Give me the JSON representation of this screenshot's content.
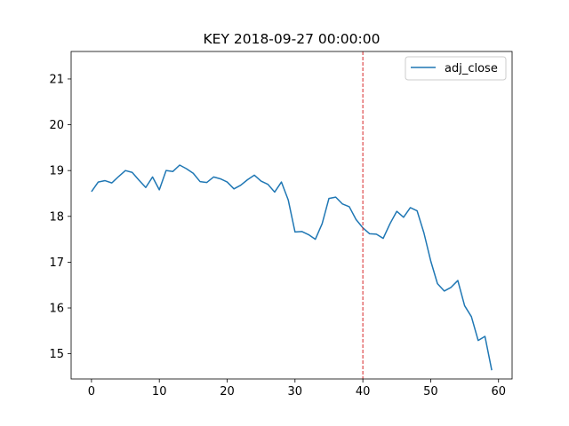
{
  "chart_data": {
    "type": "line",
    "title": "KEY 2018-09-27 00:00:00",
    "xlabel": "",
    "ylabel": "",
    "xlim": [
      -3,
      62
    ],
    "ylim": [
      14.45,
      21.6
    ],
    "xticks": [
      0,
      10,
      20,
      30,
      40,
      50,
      60
    ],
    "yticks": [
      15,
      16,
      17,
      18,
      19,
      20,
      21
    ],
    "grid": false,
    "legend": {
      "position": "top-right"
    },
    "series": [
      {
        "name": "adj_close",
        "color": "#1f77b4",
        "x": [
          0,
          1,
          2,
          3,
          4,
          5,
          6,
          7,
          8,
          9,
          10,
          11,
          12,
          13,
          14,
          15,
          16,
          17,
          18,
          19,
          20,
          21,
          22,
          23,
          24,
          25,
          26,
          27,
          28,
          29,
          30,
          31,
          32,
          33,
          34,
          35,
          36,
          37,
          38,
          39,
          40,
          41,
          42,
          43,
          44,
          45,
          46,
          47,
          48,
          49,
          50,
          51,
          52,
          53,
          54,
          55,
          56,
          57,
          58,
          59
        ],
        "values": [
          18.54,
          18.75,
          18.78,
          18.73,
          18.87,
          19.0,
          18.96,
          18.79,
          18.63,
          18.86,
          18.58,
          19.0,
          18.98,
          19.12,
          19.04,
          18.94,
          18.76,
          18.74,
          18.86,
          18.82,
          18.75,
          18.6,
          18.68,
          18.8,
          18.9,
          18.77,
          18.7,
          18.53,
          18.75,
          18.36,
          17.66,
          17.67,
          17.6,
          17.5,
          17.84,
          18.39,
          18.42,
          18.27,
          18.21,
          17.93,
          17.75,
          17.62,
          17.61,
          17.52,
          17.84,
          18.11,
          17.98,
          18.19,
          18.12,
          17.64,
          17.03,
          16.53,
          16.37,
          16.45,
          16.6,
          16.05,
          15.81,
          15.29,
          15.38,
          14.64
        ]
      }
    ],
    "annotations": [
      {
        "type": "vline",
        "x": 40,
        "color": "#d62728",
        "style": "dashed"
      }
    ]
  }
}
